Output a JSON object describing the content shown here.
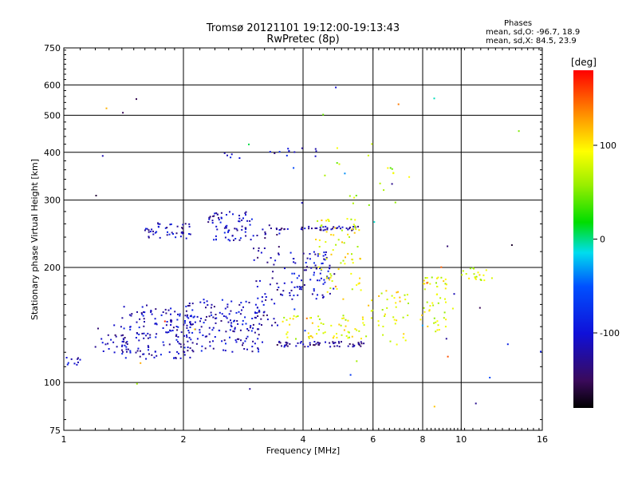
{
  "header": {
    "title_line1": "Tromsø 20121101 19:12:00-19:13:43",
    "title_line2": "RwPretec (8p)"
  },
  "phases": {
    "heading": "Phases",
    "line1": "mean, sd,O: -96.7, 18.9",
    "line2": "mean, sd,X:  84.5, 23.9"
  },
  "colorbar": {
    "unit": "[deg]",
    "ticks": [
      {
        "label": "100",
        "value": 100
      },
      {
        "label": "0",
        "value": 0
      },
      {
        "label": "-100",
        "value": -100
      }
    ],
    "range": [
      -180,
      180
    ]
  },
  "chart_data": {
    "type": "scatter",
    "title": "Tromsø 20121101 19:12:00-19:13:43",
    "subtitle": "RwPretec (8p)",
    "xlabel": "Frequency [MHz]",
    "ylabel": "Stationary phase Virtual Height [km]",
    "xscale": "log",
    "yscale": "log",
    "xlim": [
      1,
      16
    ],
    "ylim": [
      75,
      750
    ],
    "xticks": [
      {
        "label": "1",
        "value": 1
      },
      {
        "label": "2",
        "value": 2
      },
      {
        "label": "4",
        "value": 4
      },
      {
        "label": "6",
        "value": 6
      },
      {
        "label": "8",
        "value": 8
      },
      {
        "label": "10",
        "value": 10
      },
      {
        "label": "16",
        "value": 16
      }
    ],
    "yticks": [
      {
        "label": "75",
        "value": 75
      },
      {
        "label": "100",
        "value": 100
      },
      {
        "label": "200",
        "value": 200
      },
      {
        "label": "300",
        "value": 300
      },
      {
        "label": "400",
        "value": 400
      },
      {
        "label": "500",
        "value": 500
      },
      {
        "label": "600",
        "value": 600
      },
      {
        "label": "750",
        "value": 750
      }
    ],
    "grid": true,
    "color_variable": "phase [deg]",
    "color_range": [
      -180,
      180
    ],
    "clusters": [
      {
        "x_range": [
          1.0,
          1.1
        ],
        "y_range": [
          110,
          117
        ],
        "phase": -110,
        "count": 10
      },
      {
        "x_range": [
          1.2,
          1.45
        ],
        "y_range": [
          118,
          140
        ],
        "phase": -115,
        "count": 25
      },
      {
        "x_range": [
          1.4,
          2.1
        ],
        "y_range": [
          115,
          160
        ],
        "phase": -110,
        "count": 150
      },
      {
        "x_range": [
          2.0,
          3.2
        ],
        "y_range": [
          120,
          165
        ],
        "phase": -110,
        "count": 170
      },
      {
        "x_range": [
          1.6,
          2.1
        ],
        "y_range": [
          238,
          262
        ],
        "phase": -112,
        "count": 45
      },
      {
        "x_range": [
          2.3,
          3.0
        ],
        "y_range": [
          235,
          280
        ],
        "phase": -110,
        "count": 70
      },
      {
        "x_range": [
          3.0,
          3.6
        ],
        "y_range": [
          140,
          260
        ],
        "phase": -120,
        "count": 60
      },
      {
        "x_range": [
          3.4,
          5.7
        ],
        "y_range": [
          124,
          128
        ],
        "phase": -125,
        "count": 60
      },
      {
        "x_range": [
          3.4,
          5.7
        ],
        "y_range": [
          250,
          256
        ],
        "phase": -120,
        "count": 45
      },
      {
        "x_range": [
          3.7,
          4.8
        ],
        "y_range": [
          165,
          220
        ],
        "phase": -105,
        "count": 80
      },
      {
        "x_range": [
          3.5,
          5.8
        ],
        "y_range": [
          130,
          150
        ],
        "phase": 85,
        "count": 60
      },
      {
        "x_range": [
          4.3,
          5.6
        ],
        "y_range": [
          165,
          270
        ],
        "phase": 90,
        "count": 70
      },
      {
        "x_range": [
          5.8,
          7.4
        ],
        "y_range": [
          125,
          175
        ],
        "phase": 90,
        "count": 40
      },
      {
        "x_range": [
          7.9,
          9.2
        ],
        "y_range": [
          135,
          190
        ],
        "phase": 85,
        "count": 50
      },
      {
        "x_range": [
          10.0,
          12.0
        ],
        "y_range": [
          185,
          200
        ],
        "phase": 85,
        "count": 20
      },
      {
        "x_range": [
          3.2,
          4.5
        ],
        "y_range": [
          390,
          410
        ],
        "phase": -110,
        "count": 12
      },
      {
        "x_range": [
          2.4,
          2.9
        ],
        "y_range": [
          385,
          400
        ],
        "phase": -110,
        "count": 5
      },
      {
        "x_range": [
          4.5,
          7.5
        ],
        "y_range": [
          285,
          430
        ],
        "phase": 70,
        "count": 20
      },
      {
        "x_range": [
          1.2,
          16.0
        ],
        "y_range": [
          80,
          620
        ],
        "phase": 0,
        "count": 45
      }
    ]
  }
}
